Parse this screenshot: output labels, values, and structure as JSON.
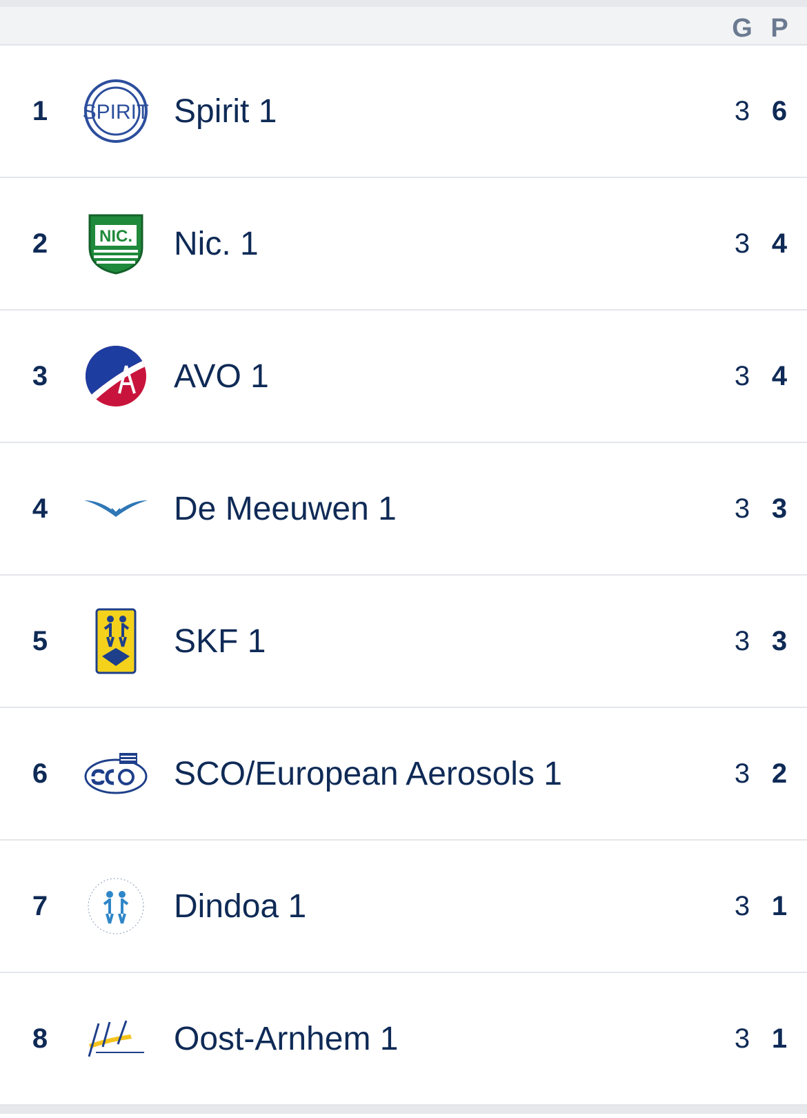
{
  "header": {
    "games_label": "G",
    "points_label": "P"
  },
  "rows": [
    {
      "rank": "1",
      "team": "Spirit 1",
      "games": "3",
      "points": "6",
      "logo_icon": "spirit-logo-icon"
    },
    {
      "rank": "2",
      "team": "Nic. 1",
      "games": "3",
      "points": "4",
      "logo_icon": "nic-logo-icon"
    },
    {
      "rank": "3",
      "team": "AVO 1",
      "games": "3",
      "points": "4",
      "logo_icon": "avo-logo-icon"
    },
    {
      "rank": "4",
      "team": "De Meeuwen 1",
      "games": "3",
      "points": "3",
      "logo_icon": "de-meeuwen-logo-icon"
    },
    {
      "rank": "5",
      "team": "SKF 1",
      "games": "3",
      "points": "3",
      "logo_icon": "skf-logo-icon"
    },
    {
      "rank": "6",
      "team": "SCO/European Aerosols 1",
      "games": "3",
      "points": "2",
      "logo_icon": "sco-logo-icon"
    },
    {
      "rank": "7",
      "team": "Dindoa 1",
      "games": "3",
      "points": "1",
      "logo_icon": "dindoa-logo-icon"
    },
    {
      "rank": "8",
      "team": "Oost-Arnhem 1",
      "games": "3",
      "points": "1",
      "logo_icon": "oost-arnhem-logo-icon"
    }
  ]
}
